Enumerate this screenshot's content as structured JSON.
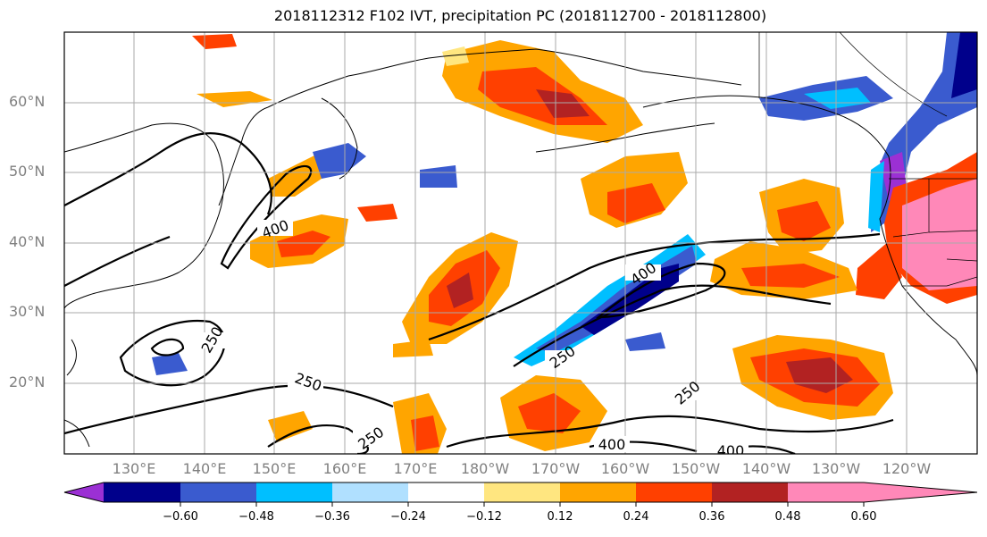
{
  "title": "2018112312 F102 IVT, precipitation PC (2018112700 - 2018112800)",
  "lat_labels": [
    "60°N",
    "50°N",
    "40°N",
    "30°N",
    "20°N"
  ],
  "lon_labels": [
    "130°E",
    "140°E",
    "150°E",
    "160°E",
    "170°E",
    "180°W",
    "170°W",
    "160°W",
    "150°W",
    "140°W",
    "130°W",
    "120°W"
  ],
  "contour_labels": [
    "400",
    "400",
    "250",
    "250",
    "250",
    "250",
    "250",
    "400",
    "400"
  ],
  "colorbar": {
    "ticks": [
      "−0.60",
      "−0.48",
      "−0.36",
      "−0.24",
      "−0.12",
      "0.12",
      "0.24",
      "0.36",
      "0.48",
      "0.60"
    ],
    "colors": [
      "#9b30d4",
      "#00008b",
      "#3a5bcf",
      "#00bfff",
      "#b0e0ff",
      "#ffffff",
      "#ffe680",
      "#ffa500",
      "#ff4000",
      "#b22222",
      "#ff88b8"
    ]
  }
}
